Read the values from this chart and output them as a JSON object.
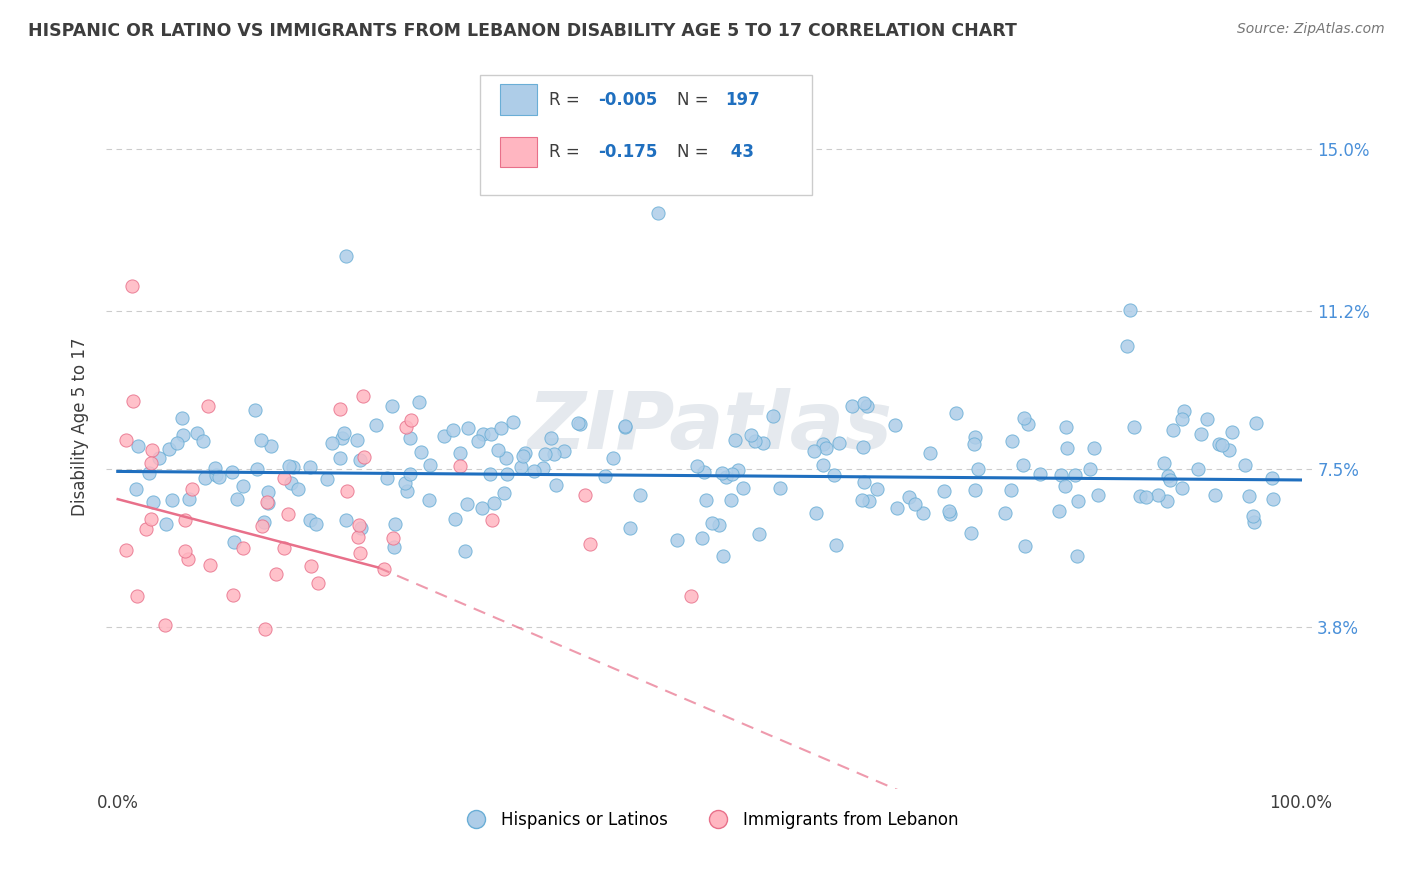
{
  "title": "HISPANIC OR LATINO VS IMMIGRANTS FROM LEBANON DISABILITY AGE 5 TO 17 CORRELATION CHART",
  "source": "Source: ZipAtlas.com",
  "ylabel": "Disability Age 5 to 17",
  "xlim": [
    -0.01,
    1.01
  ],
  "ylim": [
    0.0,
    0.17
  ],
  "yticks": [
    0.038,
    0.075,
    0.112,
    0.15
  ],
  "ytick_labels": [
    "3.8%",
    "7.5%",
    "11.2%",
    "15.0%"
  ],
  "xticks": [
    0.0,
    1.0
  ],
  "xtick_labels": [
    "0.0%",
    "100.0%"
  ],
  "series1": {
    "label": "Hispanics or Latinos",
    "R": -0.005,
    "N": 197,
    "color": "#aecde8",
    "edge_color": "#6aaed6",
    "trend_color": "#1f6fbf",
    "seed": 42
  },
  "series2": {
    "label": "Immigrants from Lebanon",
    "R": -0.175,
    "N": 43,
    "color": "#ffb6c1",
    "edge_color": "#e8708a",
    "trend_color": "#e8708a",
    "seed": 99
  },
  "trend1_y": 0.0735,
  "trend2_x_solid_end": 0.22,
  "trend2_y_start": 0.068,
  "trend2_y_solid_end": 0.052,
  "trend2_x_dash_end": 0.7,
  "trend2_y_dash_end": -0.005,
  "watermark": "ZIPatlas",
  "background_color": "#ffffff",
  "grid_color": "#cccccc",
  "title_color": "#3d3d3d",
  "axis_label_color": "#4a90d9",
  "legend_box_color1": "#aecde8",
  "legend_box_color2": "#ffb6c1",
  "legend_text_color": "#1f6fbf",
  "legend_edge1": "#6aaed6",
  "legend_edge2": "#e8708a"
}
